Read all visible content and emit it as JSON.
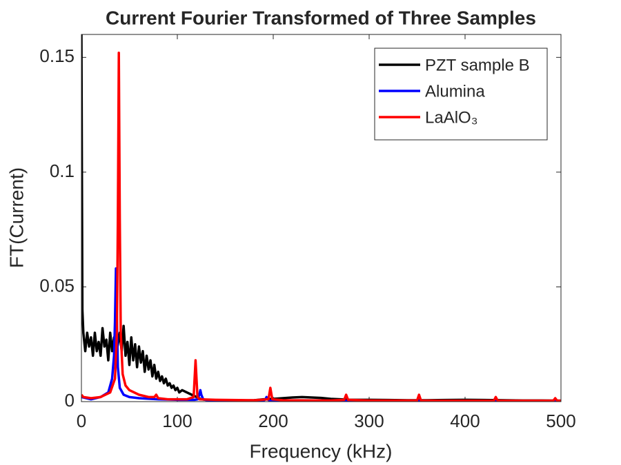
{
  "chart_data": {
    "type": "line",
    "title": "Current Fourier Transformed of Three Samples",
    "xlabel": "Frequency (kHz)",
    "ylabel": "FT(Current)",
    "xlim": [
      0,
      500
    ],
    "ylim": [
      0,
      0.16
    ],
    "xticks": [
      0,
      100,
      200,
      300,
      400,
      500
    ],
    "yticks": [
      0,
      0.05,
      0.1,
      0.15
    ],
    "legend": "upper right",
    "series": [
      {
        "name": "PZT sample B",
        "color": "#000000",
        "x": [
          0,
          1,
          2,
          4,
          6,
          8,
          10,
          12,
          14,
          16,
          18,
          20,
          22,
          24,
          26,
          28,
          30,
          32,
          34,
          36,
          38,
          40,
          42,
          44,
          46,
          48,
          50,
          52,
          54,
          56,
          58,
          60,
          62,
          64,
          66,
          68,
          70,
          72,
          74,
          76,
          78,
          80,
          82,
          84,
          86,
          88,
          90,
          92,
          94,
          96,
          98,
          100,
          102,
          105,
          110,
          115,
          120,
          125,
          130,
          140,
          150,
          160,
          170,
          180,
          190,
          200,
          210,
          220,
          230,
          240,
          250,
          260,
          270,
          280,
          300,
          320,
          340,
          360,
          380,
          400,
          420,
          440,
          460,
          480,
          500
        ],
        "values": [
          0.16,
          0.04,
          0.03,
          0.022,
          0.03,
          0.024,
          0.028,
          0.02,
          0.03,
          0.022,
          0.026,
          0.02,
          0.032,
          0.024,
          0.027,
          0.018,
          0.03,
          0.022,
          0.028,
          0.02,
          0.025,
          0.03,
          0.022,
          0.033,
          0.02,
          0.026,
          0.016,
          0.028,
          0.018,
          0.025,
          0.015,
          0.024,
          0.017,
          0.022,
          0.013,
          0.02,
          0.014,
          0.018,
          0.011,
          0.016,
          0.01,
          0.013,
          0.009,
          0.011,
          0.008,
          0.01,
          0.007,
          0.008,
          0.006,
          0.007,
          0.005,
          0.006,
          0.004,
          0.005,
          0.004,
          0.003,
          0.002,
          0.001,
          0.0008,
          0.0006,
          0.0005,
          0.0005,
          0.0005,
          0.0006,
          0.001,
          0.0012,
          0.0015,
          0.0018,
          0.002,
          0.0018,
          0.0016,
          0.0012,
          0.001,
          0.0008,
          0.0008,
          0.0007,
          0.0006,
          0.0006,
          0.0007,
          0.0008,
          0.0007,
          0.0006,
          0.0005,
          0.0005,
          0.0004
        ]
      },
      {
        "name": "Alumina",
        "color": "#0000ff",
        "x": [
          0,
          10,
          20,
          28,
          32,
          34,
          35,
          36,
          37,
          38,
          40,
          44,
          50,
          60,
          80,
          100,
          118,
          121,
          123,
          124,
          125,
          127,
          130,
          150,
          190,
          192,
          193,
          194,
          196,
          200,
          250,
          300,
          400,
          500
        ],
        "values": [
          0.002,
          0.001,
          0.002,
          0.004,
          0.01,
          0.02,
          0.035,
          0.058,
          0.035,
          0.015,
          0.006,
          0.003,
          0.002,
          0.0015,
          0.001,
          0.0008,
          0.0008,
          0.001,
          0.003,
          0.005,
          0.003,
          0.001,
          0.0007,
          0.0005,
          0.0005,
          0.001,
          0.002,
          0.001,
          0.0005,
          0.0004,
          0.0004,
          0.0003,
          0.0003,
          0.0002
        ]
      },
      {
        "name": "LaAlO₃",
        "color": "#ff0000",
        "x": [
          0,
          2,
          10,
          20,
          30,
          35,
          37,
          38,
          39,
          40,
          41,
          43,
          46,
          50,
          60,
          70,
          76,
          78,
          80,
          90,
          110,
          117,
          119,
          121,
          123,
          140,
          180,
          195,
          197,
          199,
          210,
          260,
          274,
          276,
          278,
          300,
          350,
          352,
          354,
          380,
          430,
          432,
          434,
          470,
          492,
          494,
          496,
          500
        ],
        "values": [
          0.003,
          0.002,
          0.0015,
          0.002,
          0.004,
          0.01,
          0.03,
          0.08,
          0.152,
          0.08,
          0.03,
          0.012,
          0.007,
          0.005,
          0.003,
          0.002,
          0.002,
          0.003,
          0.0015,
          0.001,
          0.001,
          0.002,
          0.018,
          0.002,
          0.001,
          0.0008,
          0.0006,
          0.001,
          0.006,
          0.001,
          0.0006,
          0.0005,
          0.0008,
          0.003,
          0.0008,
          0.0005,
          0.0005,
          0.003,
          0.0005,
          0.0004,
          0.0004,
          0.002,
          0.0004,
          0.0004,
          0.0004,
          0.0015,
          0.0004,
          0.0004
        ]
      }
    ]
  }
}
